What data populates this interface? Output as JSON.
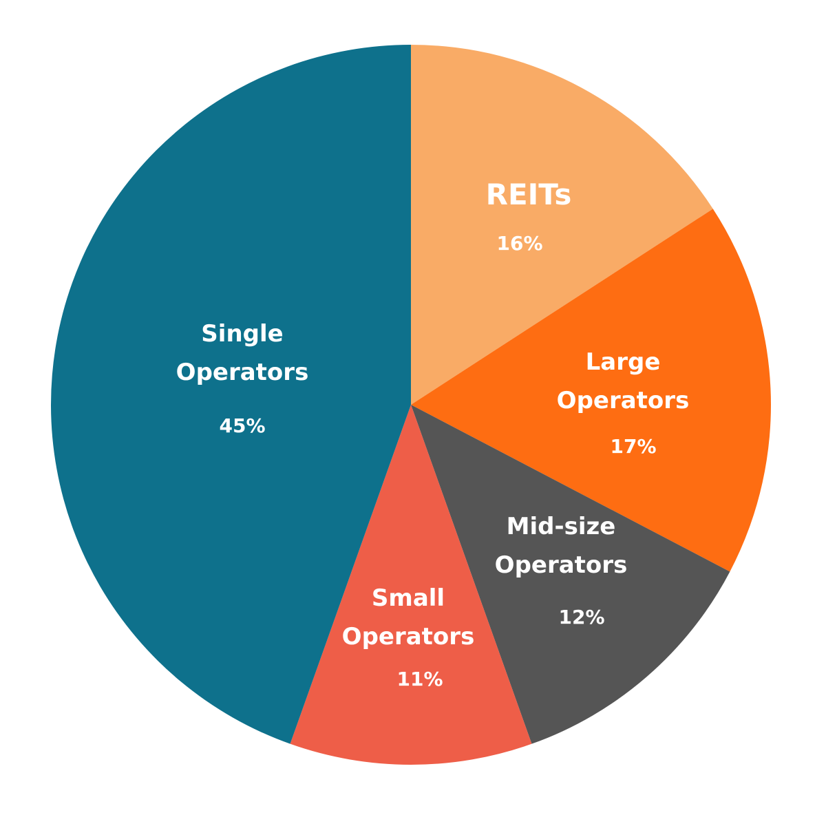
{
  "chart_data": {
    "type": "pie",
    "categories": [
      "REITs",
      "Large Operators",
      "Mid-size Operators",
      "Small Operators",
      "Single Operators"
    ],
    "values": [
      16,
      17,
      12,
      11,
      45
    ],
    "value_labels": [
      "16%",
      "17%",
      "12%",
      "11%",
      "45%"
    ],
    "colors": [
      "#f9ab66",
      "#fe6d12",
      "#555555",
      "#ee5e48",
      "#0e718c"
    ]
  }
}
